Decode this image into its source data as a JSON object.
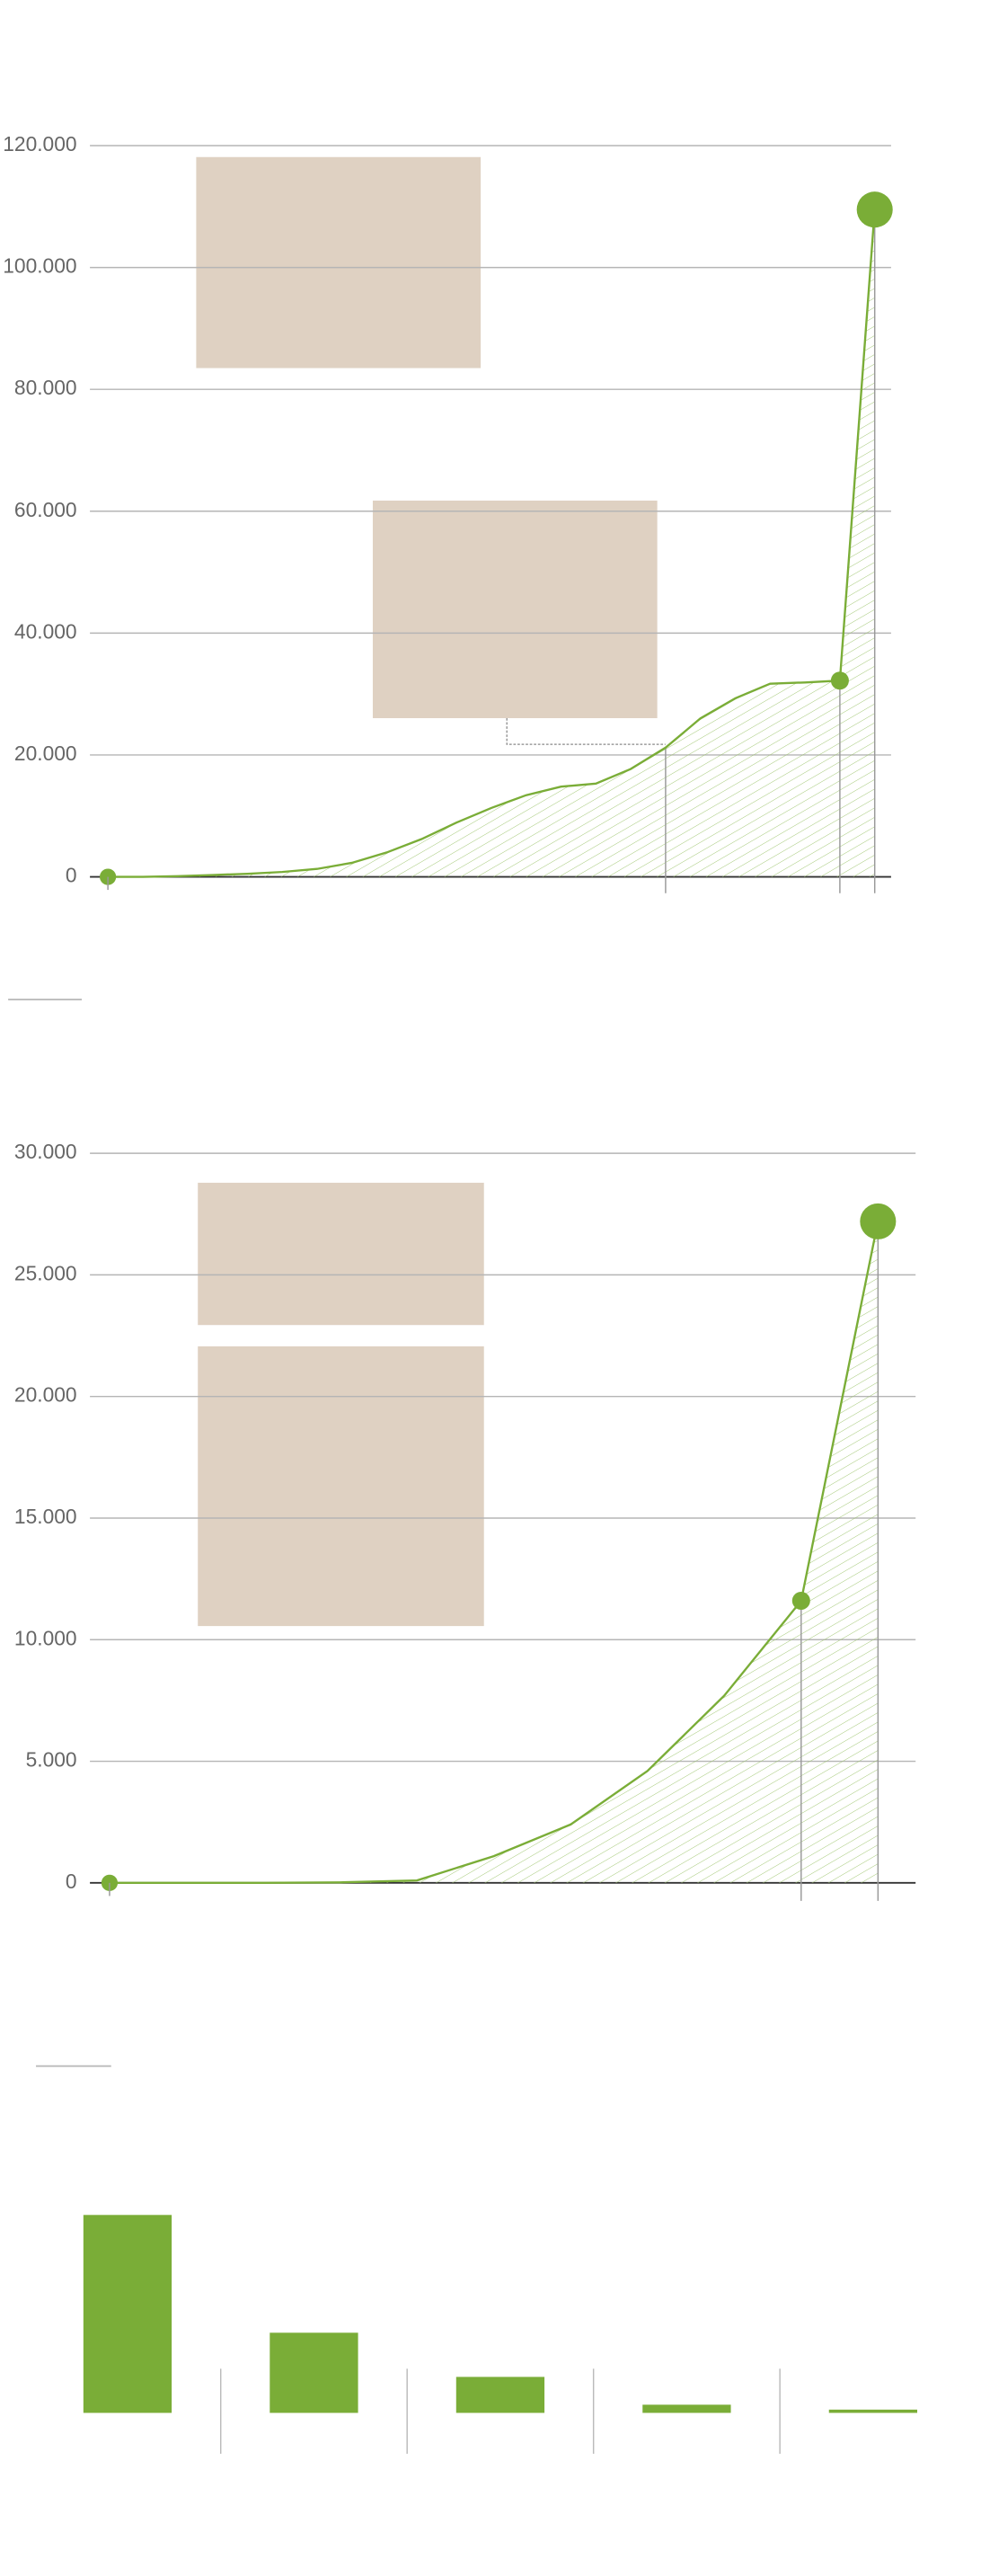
{
  "chart_data": [
    {
      "type": "line",
      "color": "#7aad37",
      "grid": true,
      "categories": [
        null,
        null,
        null,
        null,
        null,
        null,
        null,
        null,
        null,
        null,
        null,
        null,
        null,
        null,
        null,
        null,
        null,
        null,
        null,
        null,
        null,
        null,
        null
      ],
      "series": [
        {
          "color": "#7aad37",
          "values": [
            0,
            0,
            100,
            300,
            500,
            800,
            1300,
            2300,
            4000,
            6200,
            8900,
            11300,
            13400,
            14800,
            15300,
            17700,
            21200,
            26000,
            29300,
            31700,
            31900,
            32200,
            109500
          ]
        }
      ],
      "ylim": [
        0,
        120000
      ],
      "yticks": [
        {
          "value": 0,
          "label": "0"
        },
        {
          "value": 20000,
          "label": "20.000"
        },
        {
          "value": 40000,
          "label": "40.000"
        },
        {
          "value": 60000,
          "label": "60.000"
        },
        {
          "value": 80000,
          "label": "80.000"
        },
        {
          "value": 100000,
          "label": "100.000"
        },
        {
          "value": 120000,
          "label": "120.000"
        }
      ]
    },
    {
      "type": "line",
      "color": "#7aad37",
      "grid": true,
      "categories": [
        null,
        null,
        null,
        null,
        null,
        null,
        null,
        null,
        null,
        null,
        null
      ],
      "series": [
        {
          "color": "#7aad37",
          "values": [
            0,
            0,
            0,
            20,
            100,
            1100,
            2400,
            4600,
            7700,
            11600,
            27200
          ]
        }
      ],
      "ylim": [
        0,
        30000
      ],
      "yticks": [
        {
          "value": 0,
          "label": "0"
        },
        {
          "value": 5000,
          "label": "5.000"
        },
        {
          "value": 10000,
          "label": "10.000"
        },
        {
          "value": 15000,
          "label": "15.000"
        },
        {
          "value": 20000,
          "label": "20.000"
        },
        {
          "value": 25000,
          "label": "25.000"
        },
        {
          "value": 30000,
          "label": "30.000"
        }
      ]
    },
    {
      "type": "bar",
      "color": "#7aad37",
      "categories": [
        null,
        null,
        null,
        null,
        null
      ],
      "values": [
        121,
        49,
        22,
        5,
        2
      ]
    }
  ]
}
